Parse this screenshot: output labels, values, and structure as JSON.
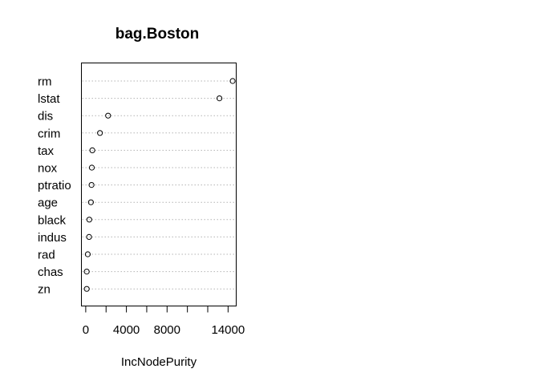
{
  "chart_data": {
    "type": "scatter",
    "title": "bag.Boston",
    "xlabel": "IncNodePurity",
    "ylabel": "",
    "xlim": [
      -425,
      14800
    ],
    "xticks": [
      0,
      2000,
      4000,
      6000,
      8000,
      10000,
      12000,
      14000
    ],
    "xtick_labels": [
      {
        "value": 0,
        "label": "0"
      },
      {
        "value": 4000,
        "label": "4000"
      },
      {
        "value": 8000,
        "label": "8000"
      },
      {
        "value": 14000,
        "label": "14000"
      }
    ],
    "grid": "dotted horizontal lines per variable",
    "categories": [
      "rm",
      "lstat",
      "dis",
      "crim",
      "tax",
      "nox",
      "ptratio",
      "age",
      "black",
      "indus",
      "rad",
      "chas",
      "zn"
    ],
    "values": [
      14450,
      13150,
      2200,
      1400,
      650,
      600,
      570,
      510,
      350,
      330,
      200,
      100,
      100
    ]
  }
}
